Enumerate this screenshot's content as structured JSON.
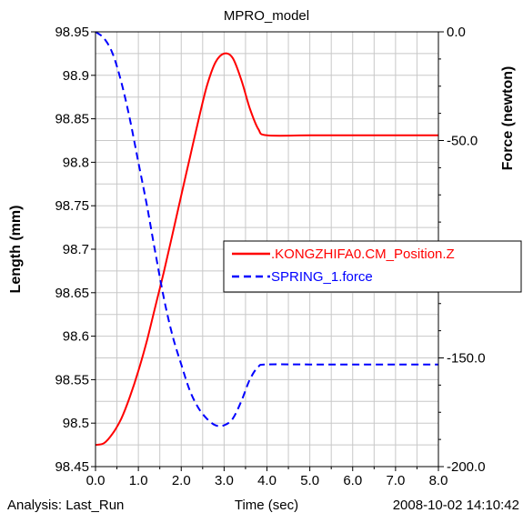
{
  "chart_data": {
    "type": "line",
    "title": "MPRO_model",
    "xlabel": "Time (sec)",
    "ylabel": "Length (mm)",
    "y2label": "Force (newton)",
    "xlim": [
      0.0,
      8.0
    ],
    "ylim": [
      98.45,
      98.95
    ],
    "y2lim": [
      -200.0,
      0.0
    ],
    "grid": true,
    "legend_position": "right",
    "x_tick_labels": [
      "0.0",
      "1.0",
      "2.0",
      "3.0",
      "4.0",
      "5.0",
      "6.0",
      "7.0",
      "8.0"
    ],
    "y_tick_labels": [
      "98.95",
      "98.9",
      "98.85",
      "98.8",
      "98.75",
      "98.7",
      "98.65",
      "98.6",
      "98.55",
      "98.5",
      "98.45"
    ],
    "y2_tick_labels": [
      "0.0",
      "-50.0",
      "-150.0",
      "-200.0"
    ],
    "series": [
      {
        "name": ".KONGZHIFA0.CM_Position.Z",
        "axis": "left",
        "color": "#ff0000",
        "style": "solid",
        "x": [
          0.0,
          0.2,
          0.4,
          0.6,
          0.8,
          1.0,
          1.2,
          1.4,
          1.6,
          1.8,
          2.0,
          2.2,
          2.4,
          2.6,
          2.8,
          3.0,
          3.2,
          3.4,
          3.6,
          3.8,
          4.0,
          5.0,
          6.0,
          7.0,
          8.0
        ],
        "y": [
          98.475,
          98.477,
          98.488,
          98.505,
          98.53,
          98.56,
          98.595,
          98.635,
          98.675,
          98.718,
          98.762,
          98.805,
          98.848,
          98.888,
          98.915,
          98.925,
          98.92,
          98.895,
          98.862,
          98.838,
          98.831,
          98.831,
          98.831,
          98.831,
          98.831
        ]
      },
      {
        "name": "SPRING_1.force",
        "axis": "right",
        "color": "#0000ff",
        "style": "dashed",
        "x": [
          0.0,
          0.2,
          0.4,
          0.6,
          0.8,
          1.0,
          1.2,
          1.4,
          1.6,
          1.8,
          2.0,
          2.2,
          2.4,
          2.6,
          2.8,
          3.0,
          3.2,
          3.4,
          3.6,
          3.8,
          4.0,
          5.0,
          6.0,
          7.0,
          8.0
        ],
        "y": [
          0.0,
          -3.0,
          -10.0,
          -23.0,
          -40.0,
          -60.0,
          -80.0,
          -102.0,
          -123.0,
          -140.0,
          -153.0,
          -165.0,
          -173.0,
          -178.0,
          -181.0,
          -181.0,
          -178.0,
          -170.0,
          -160.0,
          -154.0,
          -153.0,
          -153.0,
          -153.0,
          -153.0,
          -153.0
        ]
      }
    ]
  },
  "footer": {
    "analysis": "Analysis:  Last_Run",
    "timestamp": "2008-10-02 14:10:42"
  }
}
